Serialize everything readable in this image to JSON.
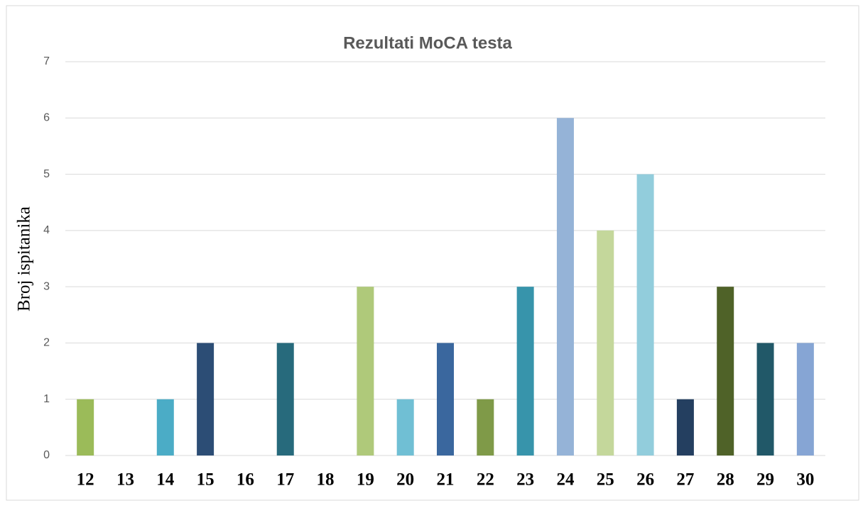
{
  "chart_data": {
    "type": "bar",
    "title": "Rezultati MoCA testa",
    "y_label": "Broj ispitanika",
    "categories": [
      "12",
      "13",
      "14",
      "15",
      "16",
      "17",
      "18",
      "19",
      "20",
      "21",
      "22",
      "23",
      "24",
      "25",
      "26",
      "27",
      "28",
      "29",
      "30"
    ],
    "values": [
      1,
      0,
      1,
      2,
      0,
      2,
      0,
      3,
      1,
      2,
      1,
      3,
      6,
      4,
      5,
      1,
      3,
      2,
      2
    ],
    "colors": [
      "#9bbb59",
      null,
      "#4bacc6",
      "#2c4d75",
      null,
      "#276a7c",
      null,
      "#afc97a",
      "#70bfd4",
      "#3a679e",
      "#7f9a48",
      "#3794ab",
      "#95b3d7",
      "#c4d79b",
      "#92cddc",
      "#243f60",
      "#4f6228",
      "#215868",
      "#86a5d4"
    ],
    "ylim": [
      0,
      7
    ],
    "yticks": [
      0,
      1,
      2,
      3,
      4,
      5,
      6,
      7
    ],
    "grid": true
  }
}
